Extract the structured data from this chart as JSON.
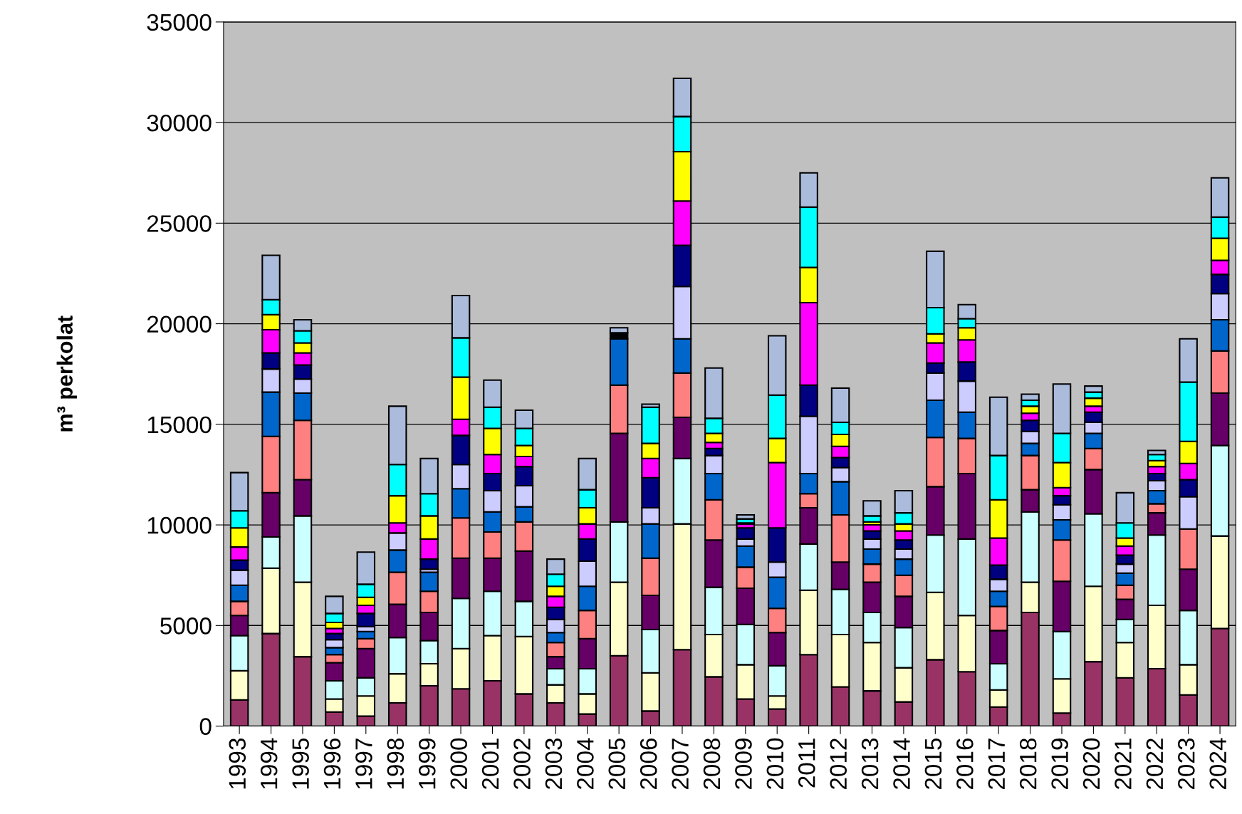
{
  "chart_data": {
    "type": "bar",
    "stacked": true,
    "ylabel": "m³ perkolat",
    "categories": [
      "1993",
      "1994",
      "1995",
      "1996",
      "1997",
      "1998",
      "1999",
      "2000",
      "2001",
      "2002",
      "2003",
      "2004",
      "2005",
      "2006",
      "2007",
      "2008",
      "2009",
      "2010",
      "2011",
      "2012",
      "2013",
      "2014",
      "2015",
      "2016",
      "2017",
      "2018",
      "2019",
      "2020",
      "2021",
      "2022",
      "2023",
      "2024"
    ],
    "series": [
      {
        "color": "#993366",
        "values": [
          1300,
          4600,
          3450,
          700,
          500,
          1150,
          2000,
          1850,
          2250,
          1600,
          1150,
          600,
          3500,
          750,
          3800,
          2450,
          1350,
          850,
          3550,
          1950,
          1750,
          1200,
          3300,
          2700,
          950,
          5650,
          650,
          3200,
          2400,
          2850,
          1550,
          4850
        ]
      },
      {
        "color": "#ffffcc",
        "values": [
          1450,
          3250,
          3700,
          650,
          1000,
          1450,
          1100,
          2000,
          2250,
          2850,
          900,
          1000,
          3650,
          1900,
          6250,
          2100,
          1700,
          650,
          3200,
          2600,
          2400,
          1700,
          3350,
          2800,
          850,
          1500,
          1700,
          3750,
          1750,
          3150,
          1500,
          4600
        ]
      },
      {
        "color": "#ccffff",
        "values": [
          1750,
          1550,
          3300,
          900,
          900,
          1800,
          1150,
          2500,
          2200,
          1750,
          800,
          1250,
          3000,
          2150,
          3250,
          2350,
          2000,
          1500,
          2300,
          2250,
          1500,
          2000,
          2850,
          3800,
          1300,
          3500,
          2350,
          3600,
          1150,
          3500,
          2700,
          4500
        ]
      },
      {
        "color": "#660066",
        "values": [
          1000,
          2200,
          1800,
          900,
          1450,
          1650,
          1400,
          2000,
          1650,
          2500,
          600,
          1500,
          4400,
          1700,
          2050,
          2350,
          1800,
          1650,
          1800,
          1350,
          1500,
          1550,
          2400,
          3250,
          1650,
          1100,
          2500,
          2200,
          1000,
          1100,
          2050,
          2600
        ]
      },
      {
        "color": "#ff8080",
        "values": [
          700,
          2800,
          2950,
          400,
          500,
          1600,
          1050,
          2000,
          1300,
          1450,
          700,
          1400,
          2400,
          1850,
          2200,
          2000,
          1050,
          1200,
          700,
          2350,
          900,
          1050,
          2450,
          1750,
          1200,
          1700,
          2050,
          1050,
          700,
          450,
          2000,
          2100
        ]
      },
      {
        "color": "#0066cc",
        "values": [
          800,
          2200,
          1350,
          350,
          350,
          1100,
          950,
          1450,
          1000,
          750,
          500,
          1200,
          2300,
          1700,
          1700,
          1300,
          1050,
          1550,
          1000,
          1650,
          750,
          800,
          1850,
          1300,
          750,
          600,
          1000,
          750,
          600,
          650,
          null,
          1550
        ]
      },
      {
        "color": "#ccccff",
        "values": [
          750,
          1150,
          700,
          400,
          250,
          850,
          150,
          1200,
          1050,
          1050,
          650,
          1250,
          null,
          800,
          2600,
          900,
          350,
          750,
          2850,
          700,
          500,
          500,
          1350,
          1550,
          600,
          600,
          750,
          550,
          450,
          500,
          1600,
          1300
        ]
      },
      {
        "color": "#000080",
        "values": [
          500,
          800,
          700,
          300,
          650,
          null,
          500,
          1450,
          850,
          950,
          600,
          1100,
          null,
          1500,
          2050,
          350,
          550,
          1700,
          1550,
          500,
          400,
          450,
          500,
          950,
          700,
          550,
          450,
          500,
          450,
          350,
          850,
          950
        ]
      },
      {
        "color": "#ff00ff",
        "values": [
          650,
          1150,
          600,
          250,
          400,
          500,
          1000,
          800,
          950,
          500,
          550,
          750,
          null,
          950,
          2200,
          300,
          200,
          3250,
          4100,
          550,
          300,
          450,
          1000,
          1100,
          1350,
          350,
          400,
          300,
          450,
          350,
          800,
          700
        ]
      },
      {
        "color": "#ffff00",
        "values": [
          950,
          750,
          500,
          300,
          400,
          1350,
          1150,
          2100,
          1300,
          550,
          500,
          800,
          null,
          750,
          2450,
          450,
          50,
          1200,
          1750,
          600,
          150,
          350,
          450,
          600,
          1900,
          350,
          1250,
          400,
          400,
          300,
          1100,
          1100
        ]
      },
      {
        "color": "#00ffff",
        "values": [
          850,
          750,
          600,
          450,
          650,
          1550,
          1100,
          1950,
          1050,
          850,
          600,
          900,
          null,
          1800,
          1750,
          750,
          200,
          2150,
          3000,
          600,
          300,
          550,
          1300,
          450,
          2200,
          300,
          1450,
          300,
          750,
          300,
          2950,
          1050
        ]
      },
      {
        "color": "#000000",
        "values": [
          null,
          null,
          null,
          null,
          null,
          null,
          null,
          null,
          null,
          null,
          null,
          null,
          300,
          null,
          null,
          null,
          null,
          null,
          null,
          null,
          null,
          null,
          null,
          null,
          null,
          null,
          null,
          null,
          null,
          null,
          null,
          null
        ]
      },
      {
        "color": "#abbbdc",
        "values": [
          1900,
          2200,
          550,
          850,
          1600,
          2900,
          1750,
          2100,
          1350,
          900,
          750,
          1550,
          250,
          150,
          1900,
          2500,
          200,
          2950,
          1700,
          1700,
          750,
          1100,
          2800,
          700,
          2900,
          300,
          2450,
          300,
          1500,
          200,
          2150,
          1950
        ]
      }
    ],
    "ylim": [
      0,
      35000
    ],
    "yticks": [
      0,
      5000,
      10000,
      15000,
      20000,
      25000,
      30000,
      35000
    ],
    "grid": "y",
    "legend": false
  }
}
